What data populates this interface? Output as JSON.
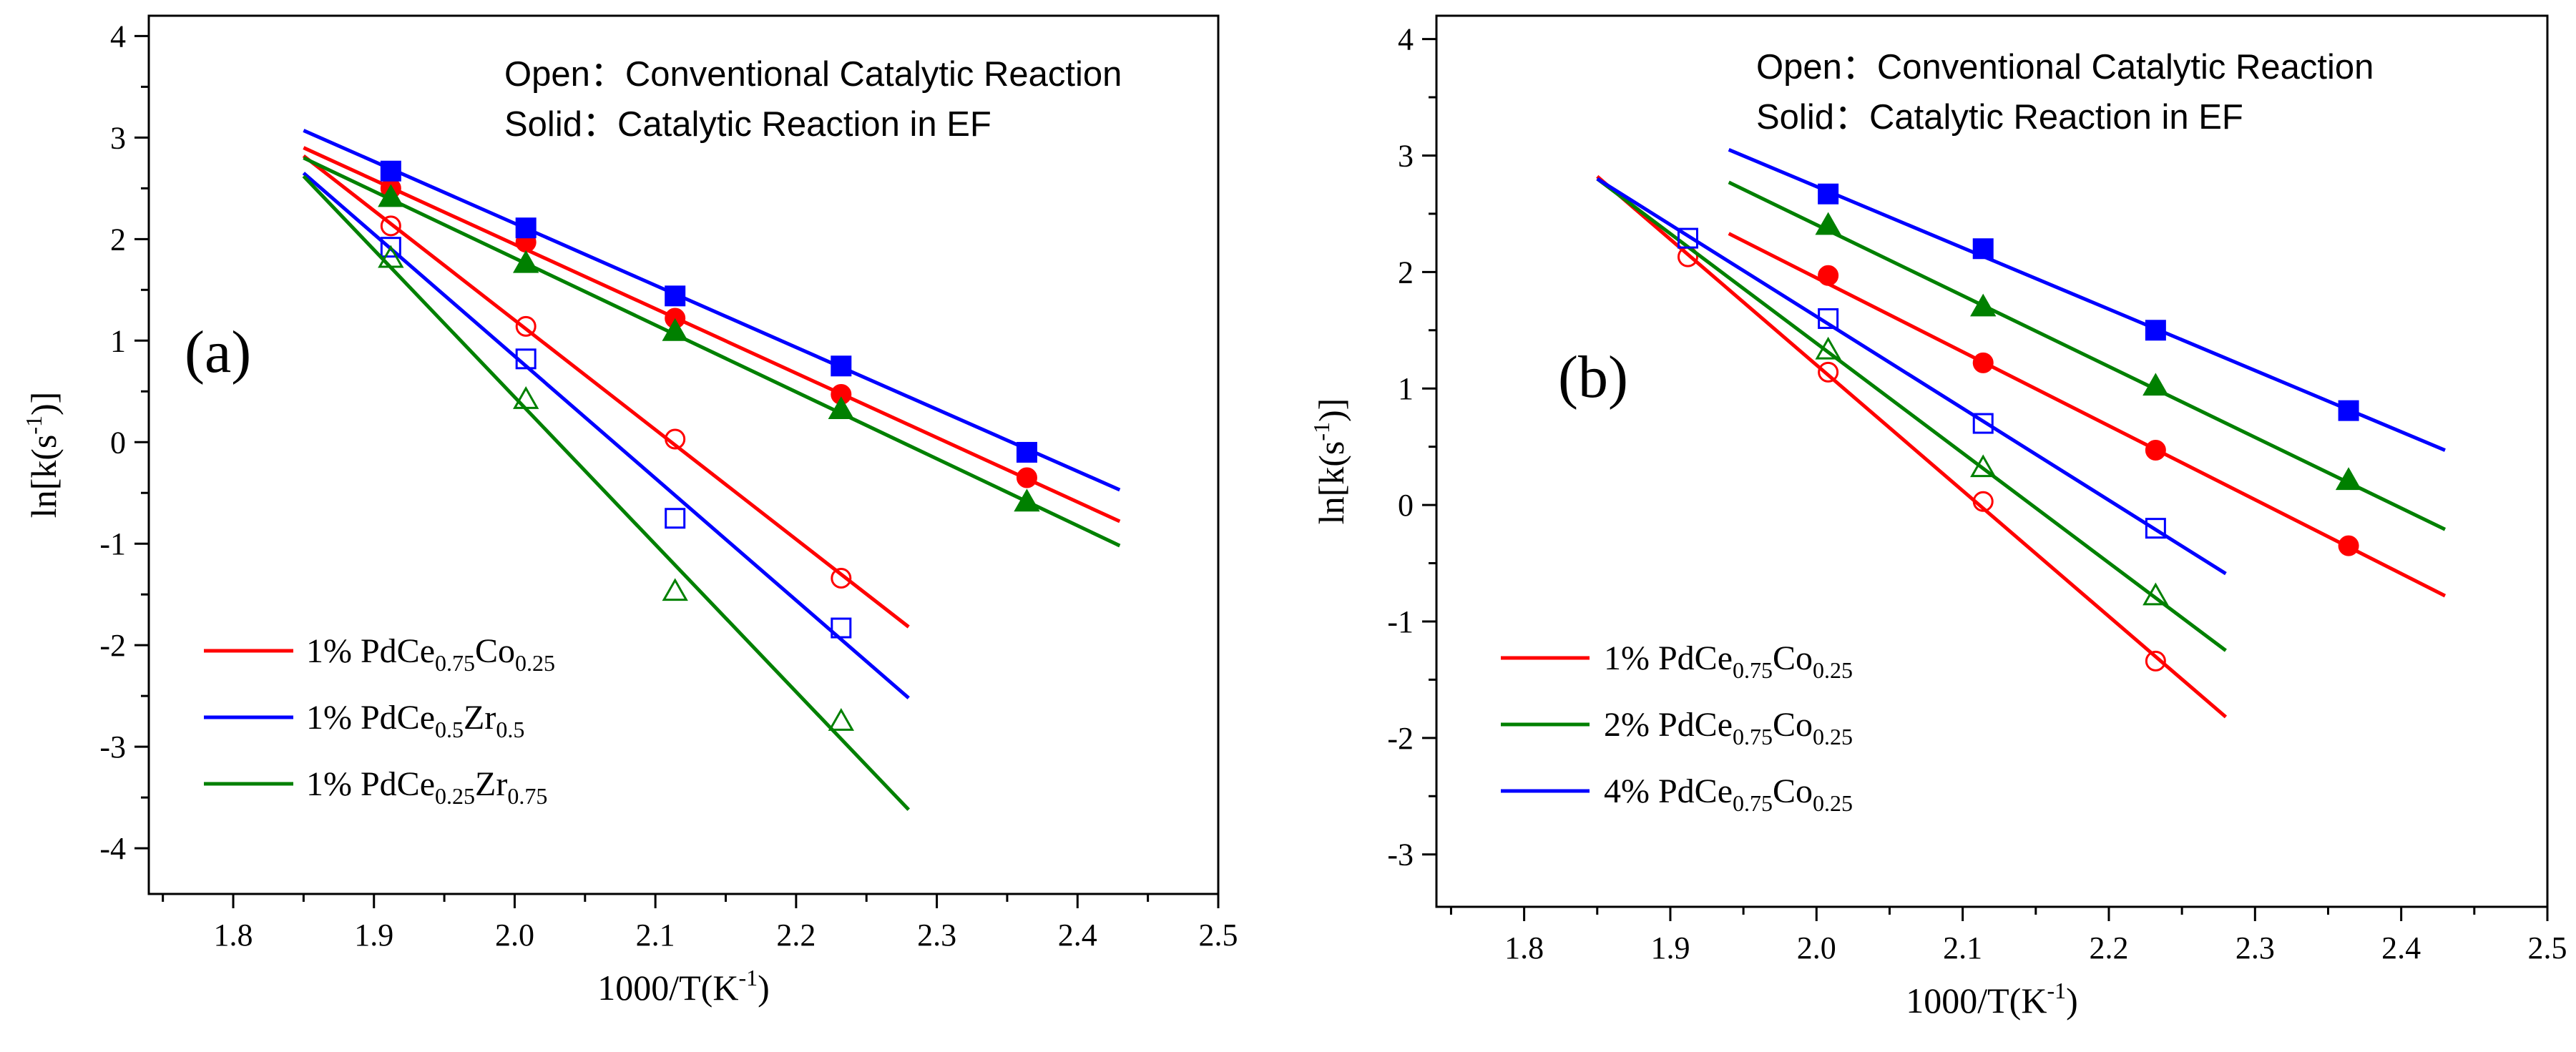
{
  "chart_data": [
    {
      "type": "scatter",
      "panel_label": "(a)",
      "xlabel": "1000/T(K",
      "xlabel_sup": "-1",
      "xlabel_close": ")",
      "ylabel": "ln[k(s",
      "ylabel_sup": "-1",
      "ylabel_close": ")]",
      "xlim": [
        1.74,
        2.5
      ],
      "ylim": [
        -4.45,
        4.2
      ],
      "xticks": [
        "1.8",
        "1.9",
        "2.0",
        "2.1",
        "2.2",
        "2.3",
        "2.4",
        "2.5"
      ],
      "yticks": [
        "-4",
        "-3",
        "-2",
        "-1",
        "0",
        "1",
        "2",
        "3",
        "4"
      ],
      "annotations": [
        "Open：Conventional Catalytic Reaction",
        "Solid：Catalytic Reaction in EF"
      ],
      "series": [
        {
          "name": "1% PdCe0.75Co0.25",
          "legend": {
            "prefix": "1% PdCe",
            "sub1": "0.75",
            "mid": "Co",
            "sub2": "0.25"
          },
          "color": "#ff0000",
          "marker": "circle",
          "open": {
            "x": [
              1.912,
              2.008,
              2.114,
              2.232
            ],
            "y": [
              2.13,
              1.14,
              0.03,
              -1.34
            ],
            "fit_x": [
              1.85,
              2.28
            ],
            "fit_y": [
              2.82,
              -1.82
            ]
          },
          "solid": {
            "x": [
              1.912,
              2.008,
              2.114,
              2.232,
              2.364
            ],
            "y": [
              2.5,
              1.97,
              1.22,
              0.47,
              -0.35
            ],
            "fit_x": [
              1.85,
              2.43
            ],
            "fit_y": [
              2.9,
              -0.78
            ]
          }
        },
        {
          "name": "1% PdCe0.5Zr0.5",
          "legend": {
            "prefix": "1% PdCe",
            "sub1": "0.5",
            "mid": "Zr",
            "sub2": "0.5"
          },
          "color": "#0000ff",
          "marker": "square",
          "open": {
            "x": [
              1.912,
              2.008,
              2.114,
              2.232
            ],
            "y": [
              1.92,
              0.82,
              -0.75,
              -1.83
            ],
            "fit_x": [
              1.85,
              2.28
            ],
            "fit_y": [
              2.65,
              -2.52
            ]
          },
          "solid": {
            "x": [
              1.912,
              2.008,
              2.114,
              2.232,
              2.364
            ],
            "y": [
              2.67,
              2.11,
              1.44,
              0.75,
              -0.1
            ],
            "fit_x": [
              1.85,
              2.43
            ],
            "fit_y": [
              3.07,
              -0.47
            ]
          }
        },
        {
          "name": "1% PdCe0.25Zr0.75",
          "legend": {
            "prefix": "1% PdCe",
            "sub1": "0.25",
            "mid": "Zr",
            "sub2": "0.75"
          },
          "color": "#008000",
          "marker": "triangle",
          "open": {
            "x": [
              1.912,
              2.008,
              2.114,
              2.232
            ],
            "y": [
              1.81,
              0.42,
              -1.47,
              -2.75
            ],
            "fit_x": [
              1.85,
              2.28
            ],
            "fit_y": [
              2.62,
              -3.62
            ]
          },
          "solid": {
            "x": [
              1.912,
              2.008,
              2.114,
              2.232,
              2.364
            ],
            "y": [
              2.41,
              1.76,
              1.09,
              0.32,
              -0.59
            ],
            "fit_x": [
              1.85,
              2.43
            ],
            "fit_y": [
              2.8,
              -1.02
            ]
          }
        }
      ]
    },
    {
      "type": "scatter",
      "panel_label": "(b)",
      "xlabel": "1000/T(K",
      "xlabel_sup": "-1",
      "xlabel_close": ")",
      "ylabel": "ln[k(s",
      "ylabel_sup": "-1",
      "ylabel_close": ")]",
      "xlim": [
        1.74,
        2.5
      ],
      "ylim": [
        -3.45,
        4.2
      ],
      "xticks": [
        "1.8",
        "1.9",
        "2.0",
        "2.1",
        "2.2",
        "2.3",
        "2.4",
        "2.5"
      ],
      "yticks": [
        "-3",
        "-2",
        "-1",
        "0",
        "1",
        "2",
        "3",
        "4"
      ],
      "annotations": [
        "Open：Conventional Catalytic Reaction",
        "Solid：Catalytic Reaction in EF"
      ],
      "series": [
        {
          "name": "1% PdCe0.75Co0.25",
          "legend": {
            "prefix": "1% PdCe",
            "sub1": "0.75",
            "mid": "Co",
            "sub2": "0.25"
          },
          "color": "#ff0000",
          "marker": "circle",
          "open": {
            "x": [
              1.912,
              2.008,
              2.114,
              2.232
            ],
            "y": [
              2.13,
              1.14,
              0.03,
              -1.34
            ],
            "fit_x": [
              1.85,
              2.28
            ],
            "fit_y": [
              2.82,
              -1.82
            ]
          },
          "solid": {
            "x": [
              2.008,
              2.114,
              2.232,
              2.364
            ],
            "y": [
              1.97,
              1.22,
              0.47,
              -0.35
            ],
            "fit_x": [
              1.94,
              2.43
            ],
            "fit_y": [
              2.33,
              -0.78
            ]
          }
        },
        {
          "name": "2% PdCe0.75Co0.25",
          "legend": {
            "prefix": "2% PdCe",
            "sub1": "0.75",
            "mid": "Co",
            "sub2": "0.25"
          },
          "color": "#008000",
          "marker": "triangle",
          "open": {
            "x": [
              2.008,
              2.114,
              2.232
            ],
            "y": [
              1.33,
              0.32,
              -0.78
            ],
            "fit_x": [
              1.85,
              2.28
            ],
            "fit_y": [
              2.8,
              -1.25
            ]
          },
          "solid": {
            "x": [
              2.008,
              2.114,
              2.232,
              2.364
            ],
            "y": [
              2.4,
              1.7,
              1.02,
              0.21
            ],
            "fit_x": [
              1.94,
              2.43
            ],
            "fit_y": [
              2.77,
              -0.21
            ]
          }
        },
        {
          "name": "4% PdCe0.75Co0.25",
          "legend": {
            "prefix": "4% PdCe",
            "sub1": "0.75",
            "mid": "Co",
            "sub2": "0.25"
          },
          "color": "#0000ff",
          "marker": "square",
          "open": {
            "x": [
              1.912,
              2.008,
              2.114,
              2.232
            ],
            "y": [
              2.29,
              1.6,
              0.7,
              -0.2
            ],
            "fit_x": [
              1.85,
              2.28
            ],
            "fit_y": [
              2.8,
              -0.59
            ]
          },
          "solid": {
            "x": [
              2.008,
              2.114,
              2.232,
              2.364
            ],
            "y": [
              2.67,
              2.2,
              1.5,
              0.81
            ],
            "fit_x": [
              1.94,
              2.43
            ],
            "fit_y": [
              3.05,
              0.47
            ]
          }
        }
      ]
    }
  ]
}
